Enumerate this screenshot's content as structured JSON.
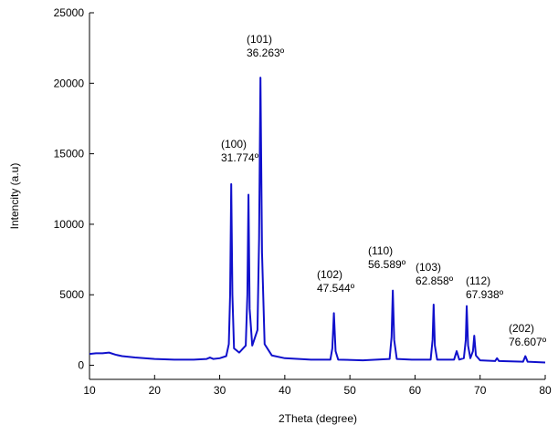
{
  "chart_data": {
    "type": "line",
    "x_label": "2Theta (degree)",
    "y_label": "Intencity (a.u)",
    "xlim": [
      10,
      80
    ],
    "ylim": [
      -1000,
      25000
    ],
    "xticks": [
      10,
      20,
      30,
      40,
      50,
      60,
      70,
      80
    ],
    "yticks": [
      0,
      5000,
      10000,
      15000,
      20000,
      25000
    ],
    "grid": false,
    "series": [
      {
        "color": "#1010cc",
        "x": [
          10,
          11,
          12,
          13,
          14,
          15,
          17,
          20,
          23,
          26,
          28,
          28.5,
          29,
          30,
          31,
          31.4,
          31.6,
          31.77,
          31.95,
          32.2,
          33,
          34,
          34.25,
          34.42,
          34.6,
          35,
          35.8,
          36.05,
          36.26,
          36.5,
          36.9,
          38,
          40,
          44,
          47,
          47.3,
          47.54,
          47.8,
          48.2,
          52,
          56.1,
          56.4,
          56.59,
          56.8,
          57.2,
          59.5,
          62.4,
          62.7,
          62.86,
          63.05,
          63.4,
          66,
          66.4,
          66.8,
          67.5,
          67.8,
          67.94,
          68.15,
          68.5,
          68.9,
          69.1,
          69.35,
          70,
          72.3,
          72.6,
          72.9,
          76.6,
          76.95,
          77.3,
          80
        ],
        "values": [
          800,
          850,
          850,
          900,
          750,
          650,
          550,
          450,
          400,
          400,
          450,
          550,
          450,
          500,
          650,
          1500,
          5000,
          12850,
          5000,
          1200,
          900,
          1400,
          5000,
          12100,
          4000,
          1400,
          2500,
          9000,
          20400,
          8000,
          1500,
          700,
          500,
          400,
          400,
          1200,
          3700,
          1000,
          400,
          350,
          450,
          2000,
          5300,
          1800,
          450,
          400,
          400,
          1800,
          4300,
          1400,
          400,
          400,
          1000,
          400,
          500,
          1800,
          4200,
          1400,
          500,
          1000,
          2100,
          700,
          350,
          300,
          500,
          300,
          250,
          650,
          250,
          200
        ]
      }
    ],
    "annotations": [
      {
        "hkl": "(100)",
        "angle": "31.774º"
      },
      {
        "hkl": "(101)",
        "angle": "36.263º"
      },
      {
        "hkl": "(102)",
        "angle": "47.544º"
      },
      {
        "hkl": "(110)",
        "angle": "56.589º"
      },
      {
        "hkl": "(103)",
        "angle": "62.858º"
      },
      {
        "hkl": "(112)",
        "angle": "67.938º"
      },
      {
        "hkl": "(202)",
        "angle": "76.607º"
      }
    ]
  }
}
